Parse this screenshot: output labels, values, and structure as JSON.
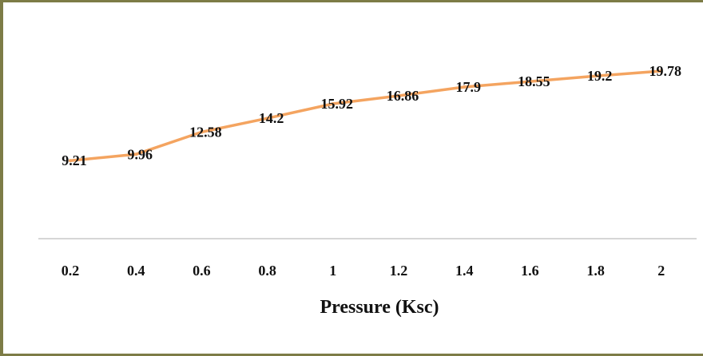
{
  "chart_data": {
    "type": "line",
    "title": "",
    "xlabel": "Pressure (Ksc)",
    "ylabel": "",
    "categories": [
      "0.2",
      "0.4",
      "0.6",
      "0.8",
      "1",
      "1.2",
      "1.4",
      "1.6",
      "1.8",
      "2"
    ],
    "series": [
      {
        "values": [
          9.21,
          9.96,
          12.58,
          14.2,
          15.92,
          16.86,
          17.9,
          18.55,
          19.2,
          19.78
        ],
        "labels": [
          "9.21",
          "9.96",
          "12.58",
          "14.2",
          "15.92",
          "16.86",
          "17.9",
          "18.55",
          "19.2",
          "19.78"
        ],
        "color": "#f4a460"
      }
    ],
    "ylim": [
      0,
      24
    ],
    "grid": false,
    "legend": "none"
  },
  "colors": {
    "frame": "#7d7c46",
    "axis_line": "#c8c8c8",
    "line": "#f4a460"
  }
}
